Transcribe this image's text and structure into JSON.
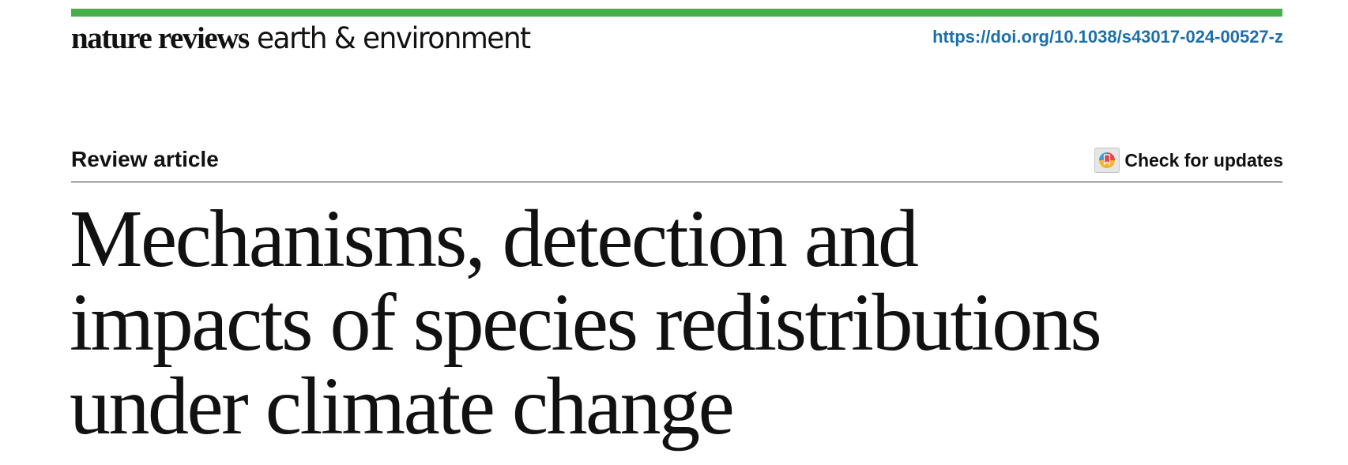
{
  "masthead": {
    "brand_bold": "nature reviews",
    "brand_light": "earth & environment",
    "accent_color": "#45b04a"
  },
  "doi": {
    "text": "https://doi.org/10.1038/s43017-024-00527-z",
    "color": "#1d6fa8"
  },
  "article": {
    "type": "Review article",
    "check_updates_label": "Check for updates",
    "check_updates_icon": "crossmark-icon"
  },
  "title": {
    "lines": [
      "Mechanisms, detection and",
      "impacts of species redistributions",
      "under climate change"
    ]
  }
}
